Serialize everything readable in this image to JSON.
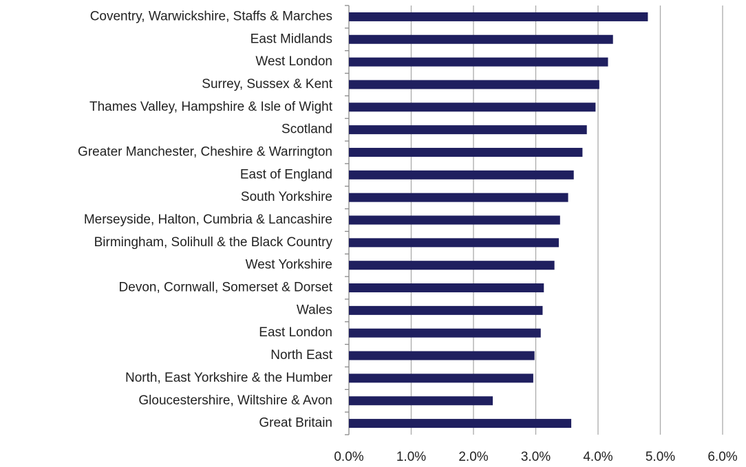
{
  "chart_data": {
    "type": "hbar",
    "categories": [
      "Coventry, Warwickshire, Staffs & Marches",
      "East Midlands",
      "West London",
      "Surrey, Sussex & Kent",
      "Thames Valley, Hampshire & Isle of Wight",
      "Scotland",
      "Greater Manchester, Cheshire & Warrington",
      "East of England",
      "South Yorkshire",
      "Merseyside, Halton, Cumbria & Lancashire",
      "Birmingham, Solihull & the Black Country",
      "West Yorkshire",
      "Devon, Cornwall, Somerset & Dorset",
      "Wales",
      "East London",
      "North East",
      "North, East Yorkshire & the Humber",
      "Gloucestershire, Wiltshire & Avon",
      "Great Britain"
    ],
    "values": [
      4.8,
      4.24,
      4.16,
      4.02,
      3.96,
      3.82,
      3.75,
      3.61,
      3.52,
      3.39,
      3.37,
      3.3,
      3.13,
      3.11,
      3.08,
      2.98,
      2.96,
      2.31,
      3.57
    ],
    "color": "#1f1f5f",
    "xlim": [
      0,
      6
    ],
    "xticks": [
      {
        "value": 0,
        "label": "0.0%"
      },
      {
        "value": 1,
        "label": "1.0%"
      },
      {
        "value": 2,
        "label": "2.0%"
      },
      {
        "value": 3,
        "label": "3.0%"
      },
      {
        "value": 4,
        "label": "4.0%"
      },
      {
        "value": 5,
        "label": "5.0%"
      },
      {
        "value": 6,
        "label": "6.0%"
      }
    ],
    "grid": true
  }
}
